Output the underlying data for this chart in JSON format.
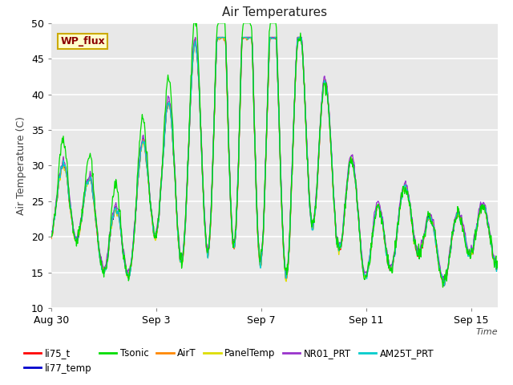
{
  "title": "Air Temperatures",
  "xlabel": "Time",
  "ylabel": "Air Temperature (C)",
  "ylim": [
    10,
    50
  ],
  "yticks": [
    10,
    15,
    20,
    25,
    30,
    35,
    40,
    45,
    50
  ],
  "background_color": "#ffffff",
  "plot_bg_color": "#e8e8e8",
  "series": [
    {
      "label": "li75_t",
      "color": "#ff0000"
    },
    {
      "label": "li77_temp",
      "color": "#0000cc"
    },
    {
      "label": "Tsonic",
      "color": "#00dd00"
    },
    {
      "label": "AirT",
      "color": "#ff8800"
    },
    {
      "label": "PanelTemp",
      "color": "#dddd00"
    },
    {
      "label": "NR01_PRT",
      "color": "#9933cc"
    },
    {
      "label": "AM25T_PRT",
      "color": "#00cccc"
    }
  ],
  "annotation_text": "WP_flux",
  "xtick_labels": [
    "Aug 30",
    "Sep 3",
    "Sep 7",
    "Sep 11",
    "Sep 15"
  ],
  "xtick_positions": [
    0,
    4,
    8,
    12,
    16
  ],
  "n_days": 17,
  "legend_ncol": 6
}
